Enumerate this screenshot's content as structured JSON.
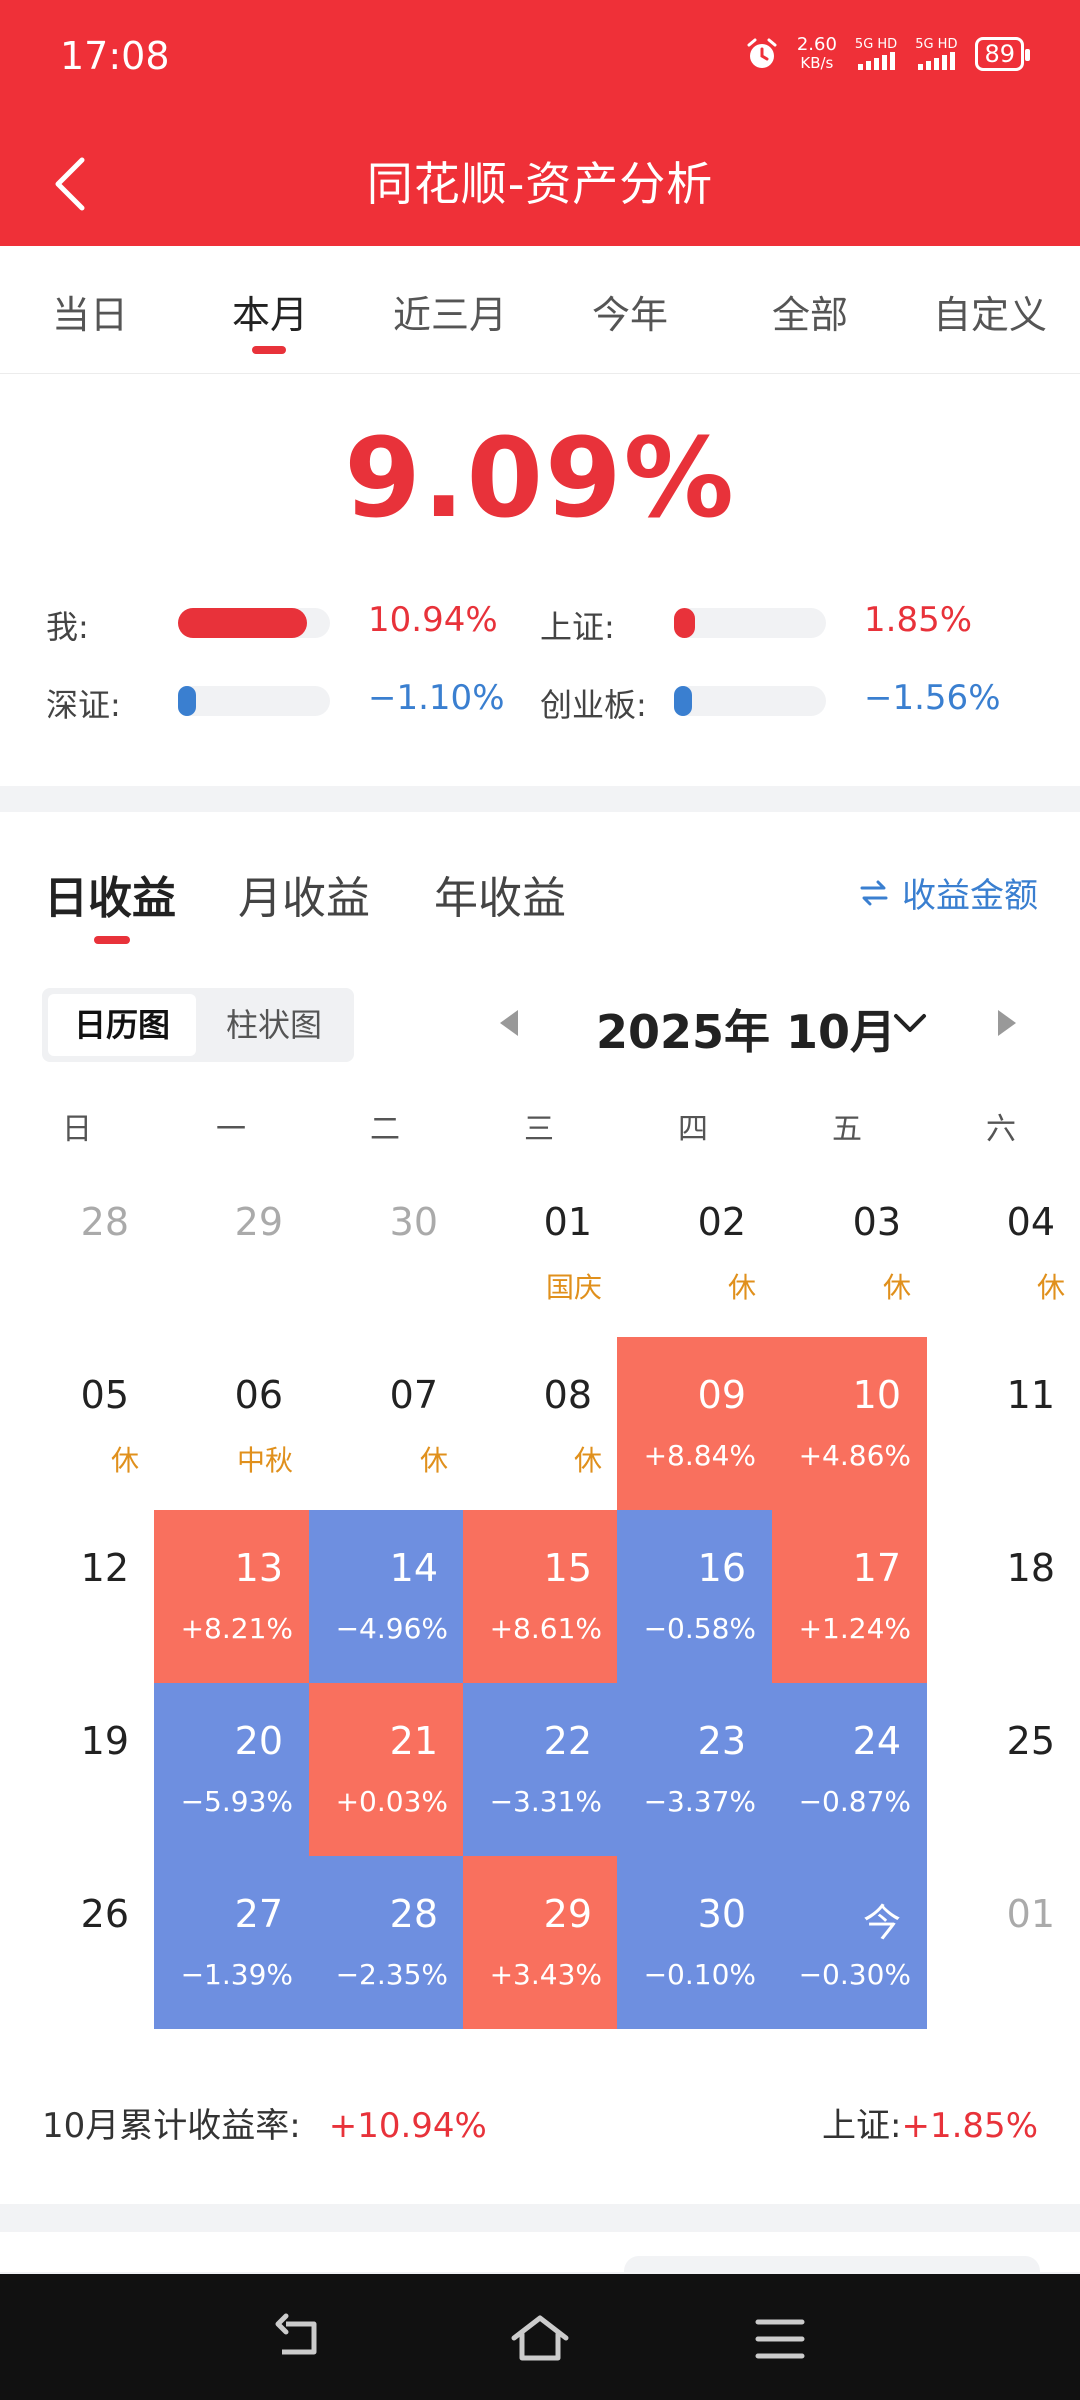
{
  "status_bar": {
    "time": "17:08",
    "net_speed_value": "2.60",
    "net_speed_unit": "KB/s",
    "sim1": "5G HD",
    "sim2": "5G HD",
    "battery": "89"
  },
  "header": {
    "title": "同花顺-资产分析"
  },
  "period_tabs": [
    "当日",
    "本月",
    "近三月",
    "今年",
    "全部",
    "自定义"
  ],
  "active_period_index": 1,
  "summary": {
    "total_rate": "9.09%",
    "comparisons": [
      {
        "label": "我:",
        "value": "10.94%",
        "fill_fraction": 0.85,
        "color": "#e8323a"
      },
      {
        "label": "上证:",
        "value": "1.85%",
        "fill_fraction": 0.14,
        "color": "#e8323a"
      },
      {
        "label": "深证:",
        "value": "−1.10%",
        "fill_fraction": 0.06,
        "color": "#3a7fd0"
      },
      {
        "label": "创业板:",
        "value": "−1.56%",
        "fill_fraction": 0.06,
        "color": "#3a7fd0"
      }
    ]
  },
  "earnings": {
    "tabs": [
      "日收益",
      "月收益",
      "年收益"
    ],
    "active_tab_index": 0,
    "amount_toggle_label": "收益金额",
    "view_modes": [
      "日历图",
      "柱状图"
    ],
    "active_view_index": 0,
    "month_label": "2025年 10月",
    "weekdays": [
      "日",
      "一",
      "二",
      "三",
      "四",
      "五",
      "六"
    ],
    "weeks": [
      [
        {
          "day": "28",
          "muted": true
        },
        {
          "day": "29",
          "muted": true
        },
        {
          "day": "30",
          "muted": true
        },
        {
          "day": "01",
          "note": "国庆"
        },
        {
          "day": "02",
          "note": "休"
        },
        {
          "day": "03",
          "note": "休"
        },
        {
          "day": "04",
          "note": "休"
        }
      ],
      [
        {
          "day": "05",
          "note": "休"
        },
        {
          "day": "06",
          "note": "中秋"
        },
        {
          "day": "07",
          "note": "休"
        },
        {
          "day": "08",
          "note": "休"
        },
        {
          "day": "09",
          "ret": "+8.84%",
          "dir": "up"
        },
        {
          "day": "10",
          "ret": "+4.86%",
          "dir": "up"
        },
        {
          "day": "11"
        }
      ],
      [
        {
          "day": "12"
        },
        {
          "day": "13",
          "ret": "+8.21%",
          "dir": "up"
        },
        {
          "day": "14",
          "ret": "−4.96%",
          "dir": "down"
        },
        {
          "day": "15",
          "ret": "+8.61%",
          "dir": "up"
        },
        {
          "day": "16",
          "ret": "−0.58%",
          "dir": "down"
        },
        {
          "day": "17",
          "ret": "+1.24%",
          "dir": "up"
        },
        {
          "day": "18"
        }
      ],
      [
        {
          "day": "19"
        },
        {
          "day": "20",
          "ret": "−5.93%",
          "dir": "down"
        },
        {
          "day": "21",
          "ret": "+0.03%",
          "dir": "up"
        },
        {
          "day": "22",
          "ret": "−3.31%",
          "dir": "down"
        },
        {
          "day": "23",
          "ret": "−3.37%",
          "dir": "down"
        },
        {
          "day": "24",
          "ret": "−0.87%",
          "dir": "down"
        },
        {
          "day": "25"
        }
      ],
      [
        {
          "day": "26"
        },
        {
          "day": "27",
          "ret": "−1.39%",
          "dir": "down"
        },
        {
          "day": "28",
          "ret": "−2.35%",
          "dir": "down"
        },
        {
          "day": "29",
          "ret": "+3.43%",
          "dir": "up"
        },
        {
          "day": "30",
          "ret": "−0.10%",
          "dir": "down"
        },
        {
          "day": "今",
          "ret": "−0.30%",
          "dir": "down"
        },
        {
          "day": "01",
          "muted": true
        }
      ]
    ],
    "footer": {
      "cumulative_label": "10月累计收益率:",
      "cumulative_value": "+10.94%",
      "index_label": "上证:",
      "index_value": "+1.85%"
    }
  },
  "colors": {
    "brand_red": "#ef3038",
    "gain": "#f9705e",
    "loss": "#6e8fe0",
    "holiday": "#e0901c",
    "link_blue": "#3a7fd0"
  },
  "system_nav": [
    "back-icon",
    "home-icon",
    "menu-icon"
  ]
}
